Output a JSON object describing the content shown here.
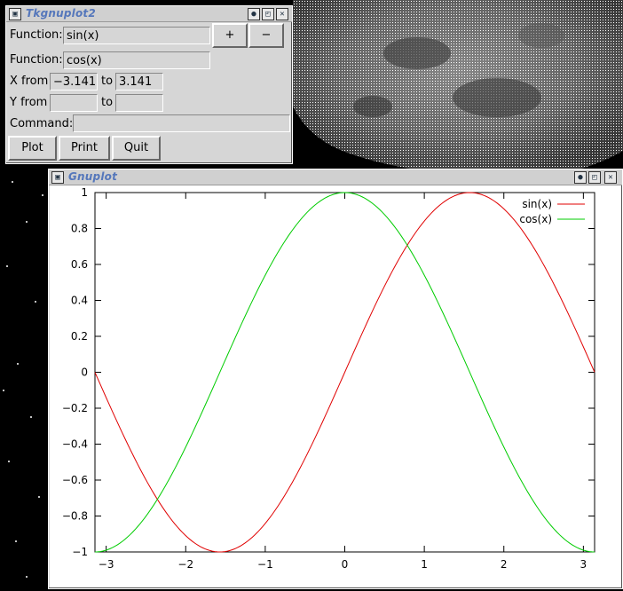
{
  "tk_window": {
    "title": "Tkgnuplot2",
    "function1_label": "Function:",
    "function1_value": "sin(x)",
    "plus_label": "+",
    "minus_label": "−",
    "function2_label": "Function:",
    "function2_value": "cos(x)",
    "xfrom_label": "X from",
    "xfrom_value": "−3.141",
    "xto_label": "to",
    "xto_value": "3.141",
    "yfrom_label": "Y from",
    "yfrom_value": "",
    "yto_label": "to",
    "yto_value": "",
    "command_label": "Command:",
    "command_value": "",
    "plot_button": "Plot",
    "print_button": "Print",
    "quit_button": "Quit"
  },
  "gnuplot_window": {
    "title": "Gnuplot"
  },
  "icons": {
    "window_menu": "window-menu-icon",
    "iconify": "iconify-icon",
    "maximize": "maximize-icon",
    "close": "close-icon"
  },
  "chart_data": {
    "type": "line",
    "x_range": [
      -3.141,
      3.141
    ],
    "ylim": [
      -1,
      1
    ],
    "xticks": [
      -3,
      -2,
      -1,
      0,
      1,
      2,
      3
    ],
    "xtick_labels": [
      "−3",
      "−2",
      "−1",
      "0",
      "1",
      "2",
      "3"
    ],
    "yticks": [
      -1,
      -0.8,
      -0.6,
      -0.4,
      -0.2,
      0,
      0.2,
      0.4,
      0.6,
      0.8,
      1
    ],
    "ytick_labels": [
      "−1",
      "−0.8",
      "−0.6",
      "−0.4",
      "−0.2",
      "0",
      "0.2",
      "0.4",
      "0.6",
      "0.8",
      "1"
    ],
    "legend_position": "top-right",
    "series": [
      {
        "name": "sin(x)",
        "function": "sin",
        "color": "#e00000"
      },
      {
        "name": "cos(x)",
        "function": "cos",
        "color": "#00cc00"
      }
    ]
  }
}
